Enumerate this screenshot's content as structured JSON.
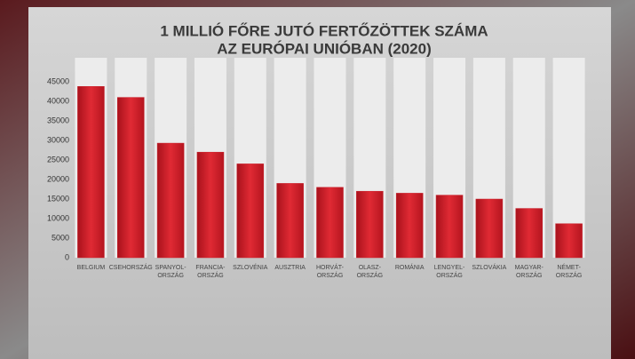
{
  "chart_data": {
    "type": "bar",
    "title": "1 MILLIÓ FŐRE JUTÓ FERTŐZÖTTEK SZÁMA",
    "subtitle": "AZ EURÓPAI UNIÓBAN (2020)",
    "categories": [
      "BELGIUM",
      "CSEHORSZÁG",
      "SPANYOL-\nORSZÁG",
      "FRANCIA-\nORSZÁG",
      "SZLOVÉNIA",
      "AUSZTRIA",
      "HORVÁT-\nORSZÁG",
      "OLASZ-\nORSZÁG",
      "ROMÁNIA",
      "LENGYEL-\nORSZÁG",
      "SZLOVÁKIA",
      "MAGYAR-\nORSZÁG",
      "NÉMET-\nORSZÁG"
    ],
    "values": [
      43800,
      41000,
      29300,
      27000,
      24000,
      19000,
      18000,
      17000,
      16500,
      16000,
      15000,
      12600,
      8700
    ],
    "color": "#c9222c",
    "ylim": [
      0,
      45000
    ],
    "yticks": [
      0,
      5000,
      10000,
      15000,
      20000,
      25000,
      30000,
      35000,
      40000,
      45000
    ],
    "grid": false
  }
}
